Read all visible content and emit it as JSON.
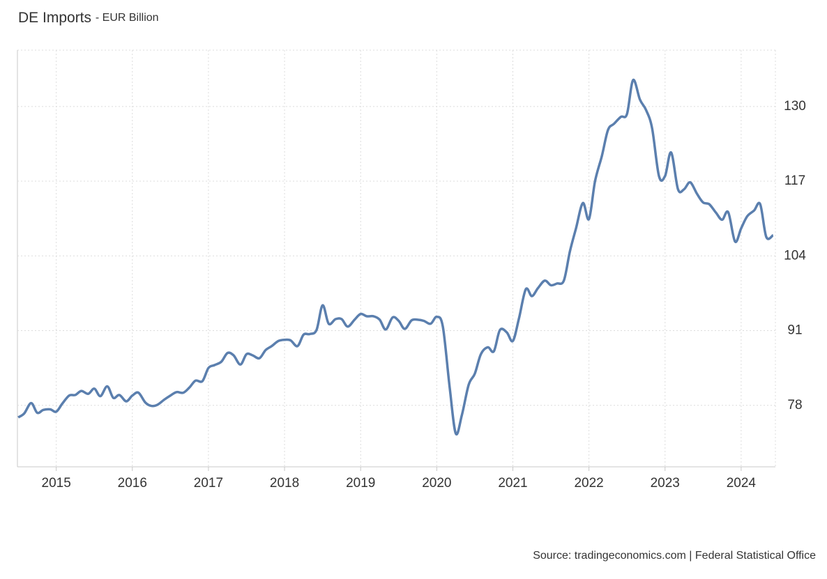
{
  "chart_data": {
    "type": "line",
    "title": "DE Imports",
    "subtitle": "- EUR Billion",
    "source": "Source: tradingeconomics.com | Federal Statistical Office",
    "color": "#5b7fae",
    "x": [
      2014.5,
      2014.58,
      2014.67,
      2014.75,
      2014.83,
      2014.92,
      2015,
      2015.08,
      2015.17,
      2015.25,
      2015.33,
      2015.42,
      2015.5,
      2015.58,
      2015.67,
      2015.75,
      2015.83,
      2015.92,
      2016,
      2016.08,
      2016.17,
      2016.25,
      2016.33,
      2016.42,
      2016.5,
      2016.58,
      2016.67,
      2016.75,
      2016.83,
      2016.92,
      2017,
      2017.08,
      2017.17,
      2017.25,
      2017.33,
      2017.42,
      2017.5,
      2017.58,
      2017.67,
      2017.75,
      2017.83,
      2017.92,
      2018,
      2018.08,
      2018.17,
      2018.25,
      2018.33,
      2018.42,
      2018.5,
      2018.58,
      2018.67,
      2018.75,
      2018.83,
      2018.92,
      2019,
      2019.08,
      2019.17,
      2019.25,
      2019.33,
      2019.42,
      2019.5,
      2019.58,
      2019.67,
      2019.75,
      2019.83,
      2019.92,
      2020,
      2020.08,
      2020.17,
      2020.25,
      2020.33,
      2020.42,
      2020.5,
      2020.58,
      2020.67,
      2020.75,
      2020.83,
      2020.92,
      2021,
      2021.08,
      2021.17,
      2021.25,
      2021.33,
      2021.42,
      2021.5,
      2021.58,
      2021.67,
      2021.75,
      2021.83,
      2021.92,
      2022,
      2022.08,
      2022.17,
      2022.25,
      2022.33,
      2022.42,
      2022.5,
      2022.58,
      2022.67,
      2022.75,
      2022.83,
      2022.92,
      2023,
      2023.08,
      2023.17,
      2023.25,
      2023.33,
      2023.42,
      2023.5,
      2023.58,
      2023.67,
      2023.75,
      2023.83,
      2023.92,
      2024,
      2024.08,
      2024.17,
      2024.25,
      2024.33,
      2024.42
    ],
    "values": [
      75.9,
      76.6,
      78.4,
      76.7,
      77.2,
      77.3,
      76.9,
      78.3,
      79.7,
      79.8,
      80.5,
      80.0,
      80.9,
      79.6,
      81.3,
      79.3,
      79.8,
      78.7,
      79.7,
      80.2,
      78.5,
      77.9,
      78.1,
      79.0,
      79.7,
      80.3,
      80.2,
      81.1,
      82.3,
      82.2,
      84.5,
      85.0,
      85.6,
      87.1,
      86.7,
      85.1,
      86.9,
      86.7,
      86.2,
      87.6,
      88.3,
      89.2,
      89.4,
      89.3,
      88.3,
      90.3,
      90.4,
      91.1,
      95.4,
      92.2,
      93.0,
      93.0,
      91.7,
      92.9,
      93.9,
      93.5,
      93.5,
      92.9,
      91.2,
      93.3,
      92.7,
      91.3,
      92.8,
      92.9,
      92.7,
      92.2,
      93.4,
      91.7,
      81.1,
      73.1,
      76.3,
      81.6,
      83.5,
      86.9,
      88.1,
      87.4,
      91.1,
      90.7,
      89.2,
      93.1,
      98.2,
      97.0,
      98.4,
      99.7,
      98.9,
      99.2,
      99.7,
      104.8,
      108.8,
      113.2,
      110.4,
      117.0,
      121.4,
      125.9,
      127.0,
      128.2,
      128.7,
      134.6,
      131.2,
      129.4,
      126.2,
      117.9,
      117.9,
      122.0,
      115.6,
      115.6,
      116.8,
      114.8,
      113.3,
      113.0,
      111.5,
      110.3,
      111.6,
      106.5,
      108.8,
      110.9,
      111.9,
      113.0,
      107.3,
      107.6
    ],
    "xlim": [
      2014.49,
      2024.45
    ],
    "xticks": [
      2015,
      2016,
      2017,
      2018,
      2019,
      2020,
      2021,
      2022,
      2023,
      2024
    ],
    "ylim": [
      67.3,
      139.8
    ],
    "yticks": [
      78,
      91,
      104,
      117,
      130
    ],
    "grid": true
  }
}
